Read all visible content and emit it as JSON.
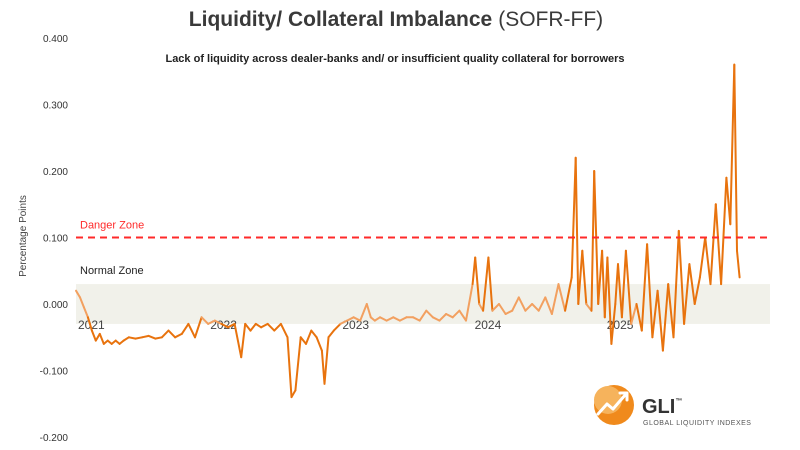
{
  "chart_data": {
    "type": "line",
    "title_main": "Liquidity/ Collateral Imbalance",
    "title_tail": "(SOFR-FF)",
    "subtitle": "Lack of liquidity across dealer-banks and/ or insufficient quality collateral for borrowers",
    "ylabel": "Percentage Points",
    "ylim": [
      -0.2,
      0.4
    ],
    "yticks": [
      "0.400",
      "0.300",
      "0.200",
      "0.100",
      "0.000",
      "-0.100",
      "-0.200"
    ],
    "xlim": [
      2021,
      2026.25
    ],
    "xticks": [
      {
        "label": "2021",
        "value": 2021
      },
      {
        "label": "2022",
        "value": 2022
      },
      {
        "label": "2023",
        "value": 2023
      },
      {
        "label": "2024",
        "value": 2024
      },
      {
        "label": "2025",
        "value": 2025
      }
    ],
    "danger_zone": {
      "label": "Danger Zone",
      "value": 0.1,
      "color": "#ff2a2a"
    },
    "normal_zone": {
      "label": "Normal Zone",
      "range": [
        -0.03,
        0.03
      ],
      "color": "#f1f1ea"
    },
    "series": [
      {
        "color_dark": "#e8730e",
        "color_light": "#f2a060",
        "points": [
          [
            2021.0,
            0.02
          ],
          [
            2021.03,
            0.01
          ],
          [
            2021.06,
            -0.005
          ],
          [
            2021.09,
            -0.02
          ],
          [
            2021.12,
            -0.04
          ],
          [
            2021.15,
            -0.055
          ],
          [
            2021.18,
            -0.045
          ],
          [
            2021.21,
            -0.06
          ],
          [
            2021.24,
            -0.055
          ],
          [
            2021.27,
            -0.06
          ],
          [
            2021.3,
            -0.055
          ],
          [
            2021.33,
            -0.06
          ],
          [
            2021.36,
            -0.055
          ],
          [
            2021.4,
            -0.05
          ],
          [
            2021.45,
            -0.052
          ],
          [
            2021.5,
            -0.05
          ],
          [
            2021.55,
            -0.048
          ],
          [
            2021.6,
            -0.052
          ],
          [
            2021.65,
            -0.05
          ],
          [
            2021.7,
            -0.04
          ],
          [
            2021.75,
            -0.05
          ],
          [
            2021.8,
            -0.045
          ],
          [
            2021.85,
            -0.03
          ],
          [
            2021.9,
            -0.05
          ],
          [
            2021.95,
            -0.02
          ],
          [
            2022.0,
            -0.03
          ],
          [
            2022.05,
            -0.025
          ],
          [
            2022.1,
            -0.03
          ],
          [
            2022.15,
            -0.035
          ],
          [
            2022.2,
            -0.03
          ],
          [
            2022.25,
            -0.08
          ],
          [
            2022.28,
            -0.03
          ],
          [
            2022.32,
            -0.04
          ],
          [
            2022.36,
            -0.03
          ],
          [
            2022.4,
            -0.035
          ],
          [
            2022.45,
            -0.03
          ],
          [
            2022.5,
            -0.04
          ],
          [
            2022.55,
            -0.03
          ],
          [
            2022.6,
            -0.05
          ],
          [
            2022.63,
            -0.14
          ],
          [
            2022.66,
            -0.13
          ],
          [
            2022.7,
            -0.05
          ],
          [
            2022.74,
            -0.06
          ],
          [
            2022.78,
            -0.04
          ],
          [
            2022.82,
            -0.05
          ],
          [
            2022.86,
            -0.07
          ],
          [
            2022.88,
            -0.12
          ],
          [
            2022.91,
            -0.05
          ],
          [
            2022.95,
            -0.04
          ],
          [
            2023.0,
            -0.03
          ],
          [
            2023.05,
            -0.025
          ],
          [
            2023.1,
            -0.02
          ],
          [
            2023.15,
            -0.025
          ],
          [
            2023.2,
            0.0
          ],
          [
            2023.23,
            -0.02
          ],
          [
            2023.26,
            -0.025
          ],
          [
            2023.3,
            -0.02
          ],
          [
            2023.35,
            -0.025
          ],
          [
            2023.4,
            -0.02
          ],
          [
            2023.45,
            -0.025
          ],
          [
            2023.5,
            -0.02
          ],
          [
            2023.55,
            -0.02
          ],
          [
            2023.6,
            -0.025
          ],
          [
            2023.65,
            -0.01
          ],
          [
            2023.7,
            -0.02
          ],
          [
            2023.75,
            -0.025
          ],
          [
            2023.8,
            -0.015
          ],
          [
            2023.85,
            -0.02
          ],
          [
            2023.9,
            -0.01
          ],
          [
            2023.95,
            -0.025
          ],
          [
            2024.0,
            0.03
          ],
          [
            2024.02,
            0.07
          ],
          [
            2024.05,
            0.0
          ],
          [
            2024.08,
            -0.01
          ],
          [
            2024.12,
            0.07
          ],
          [
            2024.15,
            -0.01
          ],
          [
            2024.2,
            0.0
          ],
          [
            2024.25,
            -0.015
          ],
          [
            2024.3,
            -0.01
          ],
          [
            2024.35,
            0.01
          ],
          [
            2024.4,
            -0.01
          ],
          [
            2024.45,
            0.0
          ],
          [
            2024.5,
            -0.01
          ],
          [
            2024.55,
            0.01
          ],
          [
            2024.6,
            -0.015
          ],
          [
            2024.65,
            0.03
          ],
          [
            2024.7,
            -0.01
          ],
          [
            2024.75,
            0.04
          ],
          [
            2024.78,
            0.22
          ],
          [
            2024.8,
            0.0
          ],
          [
            2024.83,
            0.08
          ],
          [
            2024.86,
            0.0
          ],
          [
            2024.9,
            -0.01
          ],
          [
            2024.92,
            0.2
          ],
          [
            2024.95,
            0.0
          ],
          [
            2024.98,
            0.08
          ],
          [
            2025.0,
            -0.02
          ],
          [
            2025.02,
            0.07
          ],
          [
            2025.05,
            -0.06
          ],
          [
            2025.08,
            0.0
          ],
          [
            2025.1,
            0.06
          ],
          [
            2025.13,
            -0.02
          ],
          [
            2025.16,
            0.08
          ],
          [
            2025.2,
            -0.03
          ],
          [
            2025.24,
            0.0
          ],
          [
            2025.28,
            -0.04
          ],
          [
            2025.32,
            0.09
          ],
          [
            2025.36,
            -0.05
          ],
          [
            2025.4,
            0.02
          ],
          [
            2025.44,
            -0.07
          ],
          [
            2025.48,
            0.03
          ],
          [
            2025.52,
            -0.05
          ],
          [
            2025.56,
            0.11
          ],
          [
            2025.6,
            -0.03
          ],
          [
            2025.64,
            0.06
          ],
          [
            2025.68,
            0.0
          ],
          [
            2025.72,
            0.04
          ],
          [
            2025.76,
            0.1
          ],
          [
            2025.8,
            0.03
          ],
          [
            2025.84,
            0.15
          ],
          [
            2025.88,
            0.03
          ],
          [
            2025.92,
            0.19
          ],
          [
            2025.95,
            0.12
          ],
          [
            2025.98,
            0.36
          ],
          [
            2026.0,
            0.08
          ],
          [
            2026.02,
            0.04
          ]
        ]
      }
    ]
  },
  "logo": {
    "name": "GLI",
    "tagline": "GLOBAL LIQUIDITY INDEXES",
    "trademark": "™"
  }
}
